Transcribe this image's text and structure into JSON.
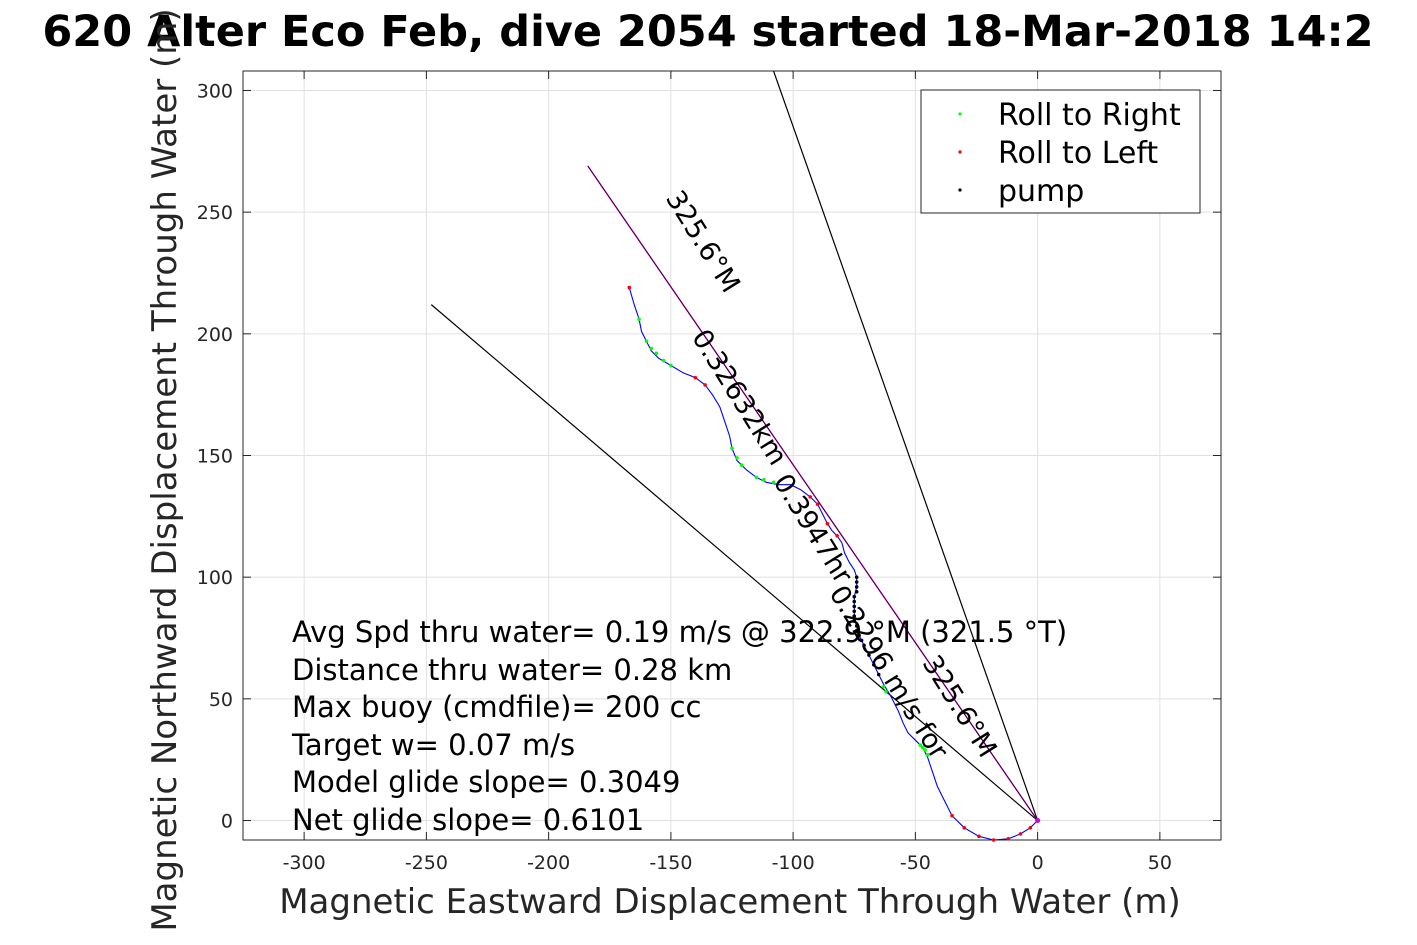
{
  "chart_data": {
    "type": "scatter",
    "title": "620 Alter Eco Feb, dive 2054 started 18-Mar-2018 14:2",
    "xlabel": "Magnetic Eastward Displacement Through Water (m)",
    "ylabel": "Magnetic Northward Displacement Through Water (m)",
    "xlim": [
      -325,
      75
    ],
    "ylim": [
      -8,
      308
    ],
    "xticks": [
      -300,
      -250,
      -200,
      -150,
      -100,
      -50,
      0,
      50
    ],
    "yticks": [
      0,
      50,
      100,
      150,
      200,
      250,
      300
    ],
    "grid": true,
    "legend_position": "top-right",
    "legend": [
      {
        "label": "Roll to Right",
        "color": "#00ff00"
      },
      {
        "label": "Roll to Left",
        "color": "#ff0000"
      },
      {
        "label": "pump",
        "color": "#000000"
      }
    ],
    "track_color": "#0000ff",
    "heading_line_color": "#cc00cc",
    "track": [
      [
        0,
        0
      ],
      [
        -3,
        -3
      ],
      [
        -7,
        -5.5
      ],
      [
        -12,
        -7.5
      ],
      [
        -18,
        -8
      ],
      [
        -24,
        -6.5
      ],
      [
        -30,
        -3
      ],
      [
        -35,
        2
      ],
      [
        -38,
        8
      ],
      [
        -41,
        14
      ],
      [
        -43,
        20
      ],
      [
        -45,
        26
      ],
      [
        -47,
        30
      ],
      [
        -50,
        33
      ],
      [
        -53,
        36
      ],
      [
        -55,
        40
      ],
      [
        -57,
        45
      ],
      [
        -60,
        51
      ],
      [
        -63,
        56
      ],
      [
        -65,
        60
      ],
      [
        -67,
        64
      ],
      [
        -69,
        68
      ],
      [
        -71,
        72
      ],
      [
        -73,
        76
      ],
      [
        -74,
        80
      ],
      [
        -75,
        84
      ],
      [
        -75,
        88
      ],
      [
        -75,
        92
      ],
      [
        -74,
        96
      ],
      [
        -74,
        100
      ],
      [
        -75,
        103
      ],
      [
        -77,
        106
      ],
      [
        -79,
        110
      ],
      [
        -80,
        114
      ],
      [
        -82,
        117
      ],
      [
        -84,
        119
      ],
      [
        -86,
        122
      ],
      [
        -88,
        126
      ],
      [
        -90,
        130
      ],
      [
        -93,
        133
      ],
      [
        -97,
        136
      ],
      [
        -101,
        138
      ],
      [
        -106,
        138
      ],
      [
        -111,
        139
      ],
      [
        -115,
        141
      ],
      [
        -119,
        144
      ],
      [
        -123,
        148
      ],
      [
        -125,
        153
      ],
      [
        -126,
        158
      ],
      [
        -128,
        164
      ],
      [
        -130,
        170
      ],
      [
        -133,
        175
      ],
      [
        -136,
        179
      ],
      [
        -140,
        182
      ],
      [
        -145,
        184
      ],
      [
        -150,
        187
      ],
      [
        -155,
        190
      ],
      [
        -158,
        193
      ],
      [
        -160,
        197
      ],
      [
        -162,
        201
      ],
      [
        -163,
        206
      ],
      [
        -165,
        212
      ],
      [
        -167,
        219
      ]
    ],
    "roll_right_points": [
      [
        -45,
        27
      ],
      [
        -46,
        29
      ],
      [
        -47,
        30
      ],
      [
        -48,
        31
      ],
      [
        -62,
        53
      ],
      [
        -63,
        55
      ],
      [
        -121,
        146
      ],
      [
        -123,
        149
      ],
      [
        -125,
        153
      ],
      [
        -115,
        141
      ],
      [
        -112,
        140
      ],
      [
        -108,
        139
      ],
      [
        -150,
        187
      ],
      [
        -153,
        189
      ],
      [
        -156,
        192
      ],
      [
        -158,
        194
      ],
      [
        -160,
        197
      ],
      [
        -163,
        206
      ]
    ],
    "roll_left_points": [
      [
        0,
        0
      ],
      [
        -3,
        -3
      ],
      [
        -7,
        -5.5
      ],
      [
        -12,
        -7.5
      ],
      [
        -18,
        -8
      ],
      [
        -24,
        -6.5
      ],
      [
        -30,
        -3
      ],
      [
        -35,
        2
      ],
      [
        -82,
        117
      ],
      [
        -86,
        122
      ],
      [
        -90,
        130
      ],
      [
        -93,
        133
      ],
      [
        -136,
        179
      ],
      [
        -140,
        182
      ],
      [
        -167,
        219
      ]
    ],
    "pump_points": [
      [
        -65,
        60
      ],
      [
        -67,
        64
      ],
      [
        -69,
        68
      ],
      [
        -71,
        72
      ],
      [
        -72,
        74
      ],
      [
        -73,
        76
      ],
      [
        -74,
        78
      ],
      [
        -74,
        80
      ],
      [
        -75,
        82
      ],
      [
        -75,
        84
      ],
      [
        -75,
        86
      ],
      [
        -75,
        88
      ],
      [
        -75,
        90
      ],
      [
        -75,
        92
      ],
      [
        -74,
        94
      ],
      [
        -74,
        96
      ],
      [
        -74,
        98
      ],
      [
        -74,
        100
      ]
    ],
    "heading_line": [
      [
        0,
        0
      ],
      [
        -184,
        269
      ]
    ],
    "cone_lines": [
      [
        [
          0,
          0
        ],
        [
          -248,
          212
        ]
      ],
      [
        [
          0,
          0
        ],
        [
          -108,
          308
        ]
      ]
    ],
    "rotated_labels": [
      {
        "text": "325.6°M",
        "at": [
          -140,
          236
        ],
        "angle_deg": 58
      },
      {
        "text": "0.32632km",
        "at": [
          -125,
          172
        ],
        "angle_deg": 58
      },
      {
        "text": "0.3947hr",
        "at": [
          -95,
          118
        ],
        "angle_deg": 58
      },
      {
        "text": "0.2296 m/s for",
        "at": [
          -64,
          59
        ],
        "angle_deg": 58
      },
      {
        "text": "325.6°M",
        "at": [
          -35,
          45
        ],
        "angle_deg": 58
      }
    ],
    "annotations": [
      "Avg Spd thru water=  0.19 m/s @ 322.9 °M (321.5 °T)",
      "Distance thru water=  0.28 km",
      "Max buoy (cmdfile)= 200 cc",
      "Target w= 0.07 m/s",
      "Model glide slope= 0.3049",
      "Net glide slope= 0.6101"
    ]
  }
}
